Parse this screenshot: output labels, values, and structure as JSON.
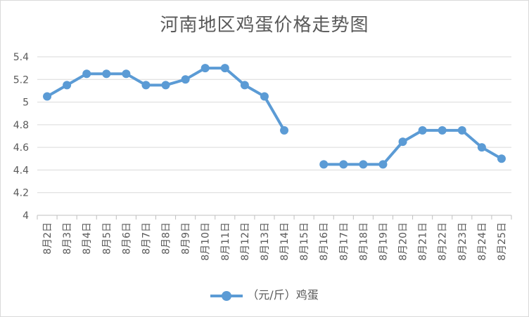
{
  "chart_data": {
    "type": "line",
    "title": "河南地区鸡蛋价格走势图",
    "categories": [
      "8月2日",
      "8月3日",
      "8月4日",
      "8月5日",
      "8月6日",
      "8月7日",
      "8月8日",
      "8月9日",
      "8月10日",
      "8月11日",
      "8月12日",
      "8月13日",
      "8月14日",
      "8月15日",
      "8月16日",
      "8月17日",
      "8月18日",
      "8月19日",
      "8月20日",
      "8月21日",
      "8月22日",
      "8月23日",
      "8月24日",
      "8月25日"
    ],
    "series": [
      {
        "name": "（元/斤）鸡蛋",
        "values": [
          5.05,
          5.15,
          5.25,
          5.25,
          5.25,
          5.15,
          5.15,
          5.2,
          5.3,
          5.3,
          5.15,
          5.05,
          4.75,
          null,
          4.45,
          4.45,
          4.45,
          4.45,
          4.65,
          4.75,
          4.75,
          4.75,
          4.6,
          4.5
        ],
        "color": "#5b9bd5"
      }
    ],
    "yticks": [
      "4",
      "4.2",
      "4.4",
      "4.6",
      "4.8",
      "5",
      "5.2",
      "5.4"
    ],
    "ylim": [
      4,
      5.4
    ],
    "grid": true,
    "legend": "bottom"
  }
}
